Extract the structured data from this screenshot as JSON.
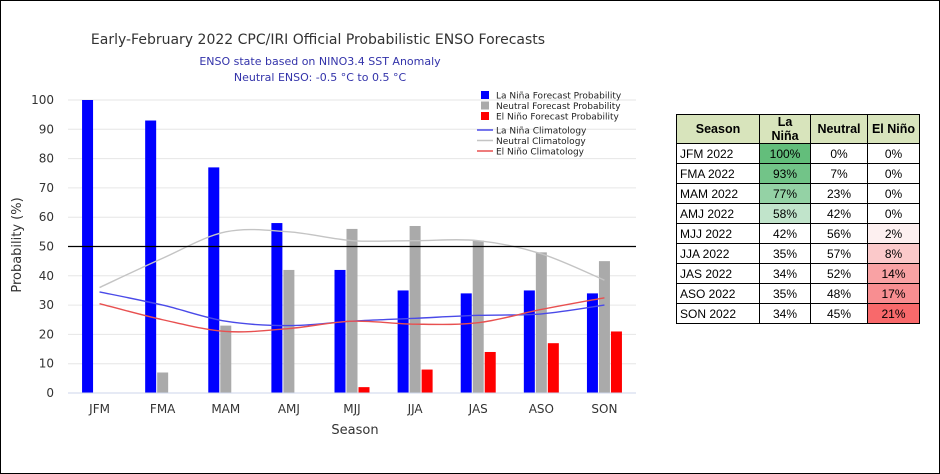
{
  "chart_data": {
    "type": "bar",
    "title": "Early-February 2022 CPC/IRI Official Probabilistic ENSO Forecasts",
    "subtitle1": "ENSO state based on NINO3.4 SST Anomaly",
    "subtitle2": "Neutral ENSO: -0.5 °C to 0.5 °C",
    "xlabel": "Season",
    "ylabel": "Probability (%)",
    "ylim": [
      0,
      100
    ],
    "yticks": [
      0,
      10,
      20,
      30,
      40,
      50,
      60,
      70,
      80,
      90,
      100
    ],
    "reference_line": 50,
    "grid": true,
    "legend_placement": "top-right",
    "categories": [
      "JFM",
      "FMA",
      "MAM",
      "AMJ",
      "MJJ",
      "JJA",
      "JAS",
      "ASO",
      "SON"
    ],
    "series": [
      {
        "name": "La Niña Forecast Probability",
        "color": "#0000ff",
        "values": [
          100,
          93,
          77,
          58,
          42,
          35,
          34,
          35,
          34
        ]
      },
      {
        "name": "Neutral Forecast Probability",
        "color": "#aaaaaa",
        "values": [
          0,
          7,
          23,
          42,
          56,
          57,
          52,
          48,
          45
        ]
      },
      {
        "name": "El Niño Forecast Probability",
        "color": "#ff0000",
        "values": [
          0,
          0,
          0,
          0,
          2,
          8,
          14,
          17,
          21
        ]
      }
    ],
    "climatology": [
      {
        "name": "La Niña Climatology",
        "color": "#4a4ae8",
        "values": [
          34.5,
          30,
          24.5,
          23,
          24.5,
          25.5,
          26.5,
          27,
          30
        ]
      },
      {
        "name": "Neutral Climatology",
        "color": "#c4c4c4",
        "values": [
          36,
          46,
          55,
          55,
          52,
          52,
          52,
          47.5,
          38.5
        ]
      },
      {
        "name": "El Niño Climatology",
        "color": "#e85050",
        "values": [
          30.5,
          25,
          21,
          22,
          24.5,
          23.5,
          24,
          28.5,
          32.5
        ]
      }
    ]
  },
  "table": {
    "headers": [
      "Season",
      "La Niña",
      "Neutral",
      "El Niño"
    ],
    "rows": [
      {
        "season": "JFM 2022",
        "la_nina": "100%",
        "neutral": "0%",
        "el_nino": "0%",
        "ln_color": "#63be7b",
        "en_color": "#ffffff"
      },
      {
        "season": "FMA 2022",
        "la_nina": "93%",
        "neutral": "7%",
        "el_nino": "0%",
        "ln_color": "#72c488",
        "en_color": "#ffffff"
      },
      {
        "season": "MAM 2022",
        "la_nina": "77%",
        "neutral": "23%",
        "el_nino": "0%",
        "ln_color": "#94d2a5",
        "en_color": "#ffffff"
      },
      {
        "season": "AMJ 2022",
        "la_nina": "58%",
        "neutral": "42%",
        "el_nino": "0%",
        "ln_color": "#c1e4cb",
        "en_color": "#ffffff"
      },
      {
        "season": "MJJ 2022",
        "la_nina": "42%",
        "neutral": "56%",
        "el_nino": "2%",
        "ln_color": "#ffffff",
        "en_color": "#fdf0f0"
      },
      {
        "season": "JJA 2022",
        "la_nina": "35%",
        "neutral": "57%",
        "el_nino": "8%",
        "ln_color": "#ffffff",
        "en_color": "#fbc9ca"
      },
      {
        "season": "JAS 2022",
        "la_nina": "34%",
        "neutral": "52%",
        "el_nino": "14%",
        "ln_color": "#ffffff",
        "en_color": "#f9a2a4"
      },
      {
        "season": "ASO 2022",
        "la_nina": "35%",
        "neutral": "48%",
        "el_nino": "17%",
        "ln_color": "#ffffff",
        "en_color": "#f88e91"
      },
      {
        "season": "SON 2022",
        "la_nina": "34%",
        "neutral": "45%",
        "el_nino": "21%",
        "ln_color": "#ffffff",
        "en_color": "#f8696b"
      }
    ]
  }
}
